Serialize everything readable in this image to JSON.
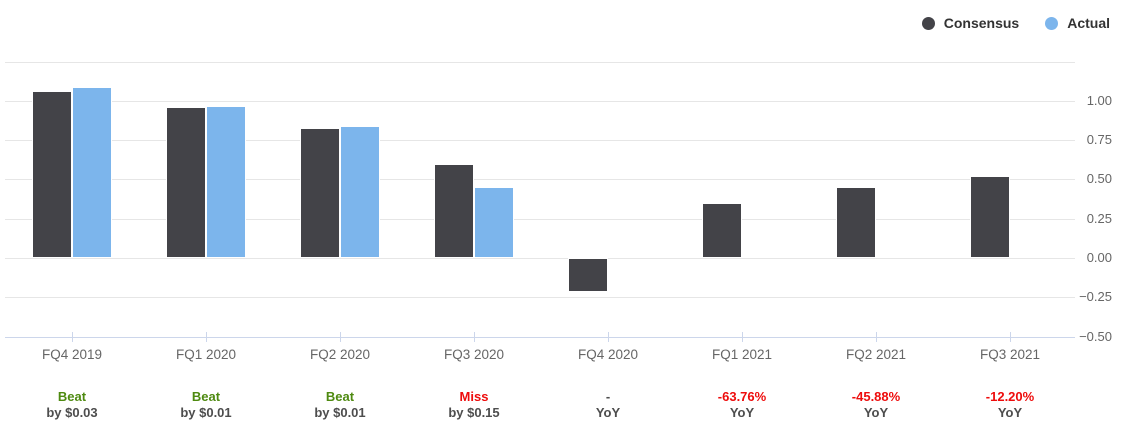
{
  "legend": {
    "items": [
      {
        "label": "Consensus",
        "color": "#434348"
      },
      {
        "label": "Actual",
        "color": "#7cb5ec"
      }
    ]
  },
  "chart_data": {
    "type": "bar",
    "title": "",
    "xlabel": "",
    "ylabel": "",
    "categories": [
      "FQ4 2019",
      "FQ1 2020",
      "FQ2 2020",
      "FQ3 2020",
      "FQ4 2020",
      "FQ1 2021",
      "FQ2 2021",
      "FQ3 2021"
    ],
    "series": [
      {
        "name": "Consensus",
        "color": "#434348",
        "values": [
          1.06,
          0.96,
          0.83,
          0.6,
          -0.22,
          0.35,
          0.45,
          0.52
        ]
      },
      {
        "name": "Actual",
        "color": "#7cb5ec",
        "values": [
          1.09,
          0.97,
          0.84,
          0.45,
          null,
          null,
          null,
          null
        ]
      }
    ],
    "ylim": [
      -0.5,
      1.25
    ],
    "yticks": [
      {
        "value": 1.25,
        "label": ""
      },
      {
        "value": 1.0,
        "label": "1.00"
      },
      {
        "value": 0.75,
        "label": "0.75"
      },
      {
        "value": 0.5,
        "label": "0.50"
      },
      {
        "value": 0.25,
        "label": "0.25"
      },
      {
        "value": 0.0,
        "label": "0.00"
      },
      {
        "value": -0.25,
        "label": "−0.25"
      },
      {
        "value": -0.5,
        "label": "−0.50"
      }
    ],
    "grid": true,
    "legend_position": "top-right",
    "annotations": [
      {
        "result": "Beat",
        "result_color": "#4e8a10",
        "detail": "by $0.03",
        "detail_color": "#4d4d4d"
      },
      {
        "result": "Beat",
        "result_color": "#4e8a10",
        "detail": "by $0.01",
        "detail_color": "#4d4d4d"
      },
      {
        "result": "Beat",
        "result_color": "#4e8a10",
        "detail": "by $0.01",
        "detail_color": "#4d4d4d"
      },
      {
        "result": "Miss",
        "result_color": "#ee0c0c",
        "detail": "by $0.15",
        "detail_color": "#4d4d4d"
      },
      {
        "result": "-",
        "result_color": "#4d4d4d",
        "detail": "YoY",
        "detail_color": "#4d4d4d"
      },
      {
        "result": "-63.76%",
        "result_color": "#ee0c0c",
        "detail": "YoY",
        "detail_color": "#4d4d4d"
      },
      {
        "result": "-45.88%",
        "result_color": "#ee0c0c",
        "detail": "YoY",
        "detail_color": "#4d4d4d"
      },
      {
        "result": "-12.20%",
        "result_color": "#ee0c0c",
        "detail": "YoY",
        "detail_color": "#4d4d4d"
      }
    ],
    "colors": {
      "background": "#ffffff",
      "gridline": "#e6e6e6",
      "axis": "#ccd6eb",
      "tick_label": "#666666",
      "legend_text": "#333333"
    }
  }
}
